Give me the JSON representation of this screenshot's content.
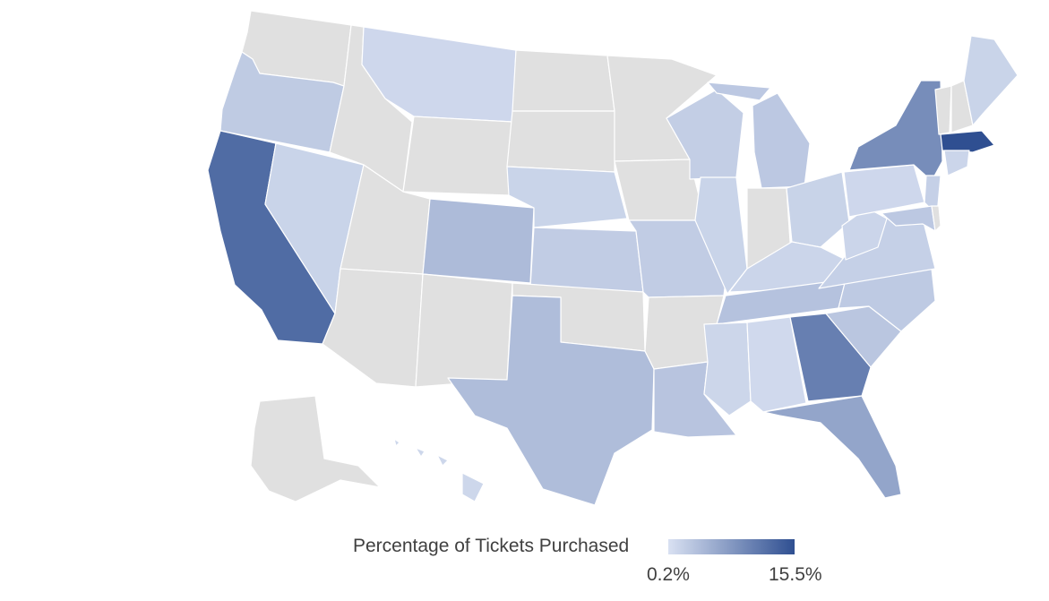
{
  "colors": {
    "no_data": "#e0e0e0",
    "scale_low": "#d9e1f2",
    "scale_high": "#2f4f91",
    "border": "#ffffff"
  },
  "legend": {
    "title": "Percentage of Tickets Purchased",
    "min_label": "0.2%",
    "max_label": "15.5%",
    "min_value": 0.2,
    "max_value": 15.5
  },
  "states": {
    "WA": null,
    "OR": 2.5,
    "CA": 12.5,
    "NV": 1.6,
    "ID": null,
    "MT": 1.2,
    "WY": null,
    "UT": null,
    "AZ": null,
    "CO": 4.2,
    "NM": null,
    "ND": null,
    "SD": null,
    "NE": 1.6,
    "KS": 2.4,
    "OK": null,
    "TX": 4.0,
    "MN": null,
    "IA": null,
    "MO": 2.4,
    "AR": null,
    "LA": 3.2,
    "WI": 2.2,
    "IL": 1.6,
    "MI": 2.8,
    "IN": null,
    "OH": 1.7,
    "KY": 1.5,
    "TN": 3.4,
    "MS": 1.4,
    "AL": 1.0,
    "GA": 10.5,
    "FL": 6.5,
    "SC": 3.0,
    "NC": 2.6,
    "VA": 2.0,
    "WV": 1.5,
    "PA": 1.2,
    "NY": 9.0,
    "VT": null,
    "NH": null,
    "ME": 1.6,
    "MA": 15.5,
    "CT": 1.5,
    "NJ": 2.0,
    "MD": 2.8,
    "DE": null,
    "AK": null,
    "HI": 1.3
  }
}
